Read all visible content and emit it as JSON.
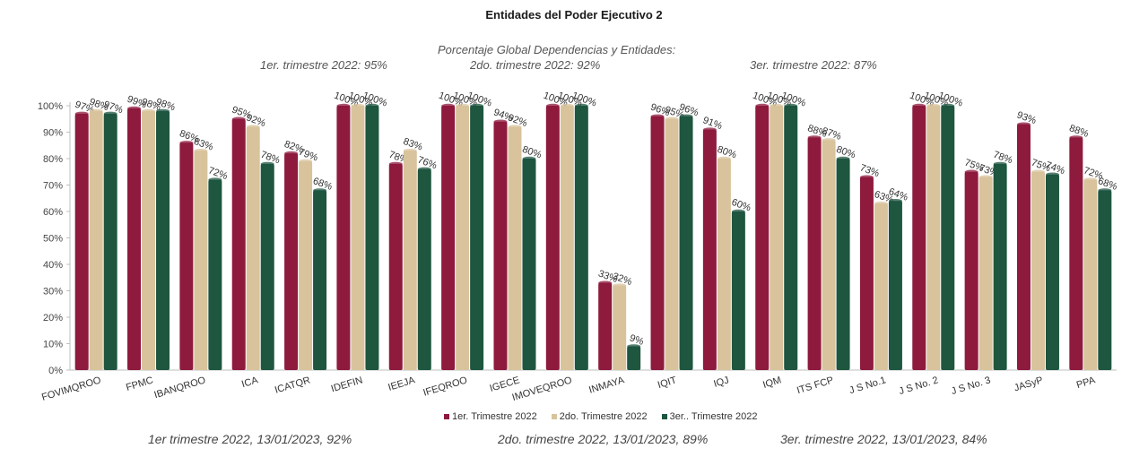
{
  "title": "Entidades del Poder Ejecutivo 2",
  "notes": {
    "heading": "Porcentaje Global  Dependencias y Entidades:",
    "q1": "1er. trimestre 2022: 95%",
    "q2": "2do. trimestre 2022: 92%",
    "q3": "3er. trimestre 2022: 87%"
  },
  "footer": {
    "q1": "1er trimestre  2022,  13/01/2023, 92%",
    "q2": "2do. trimestre 2022, 13/01/2023, 89%",
    "q3": "3er. trimestre 2022, 13/01/2023, 84%"
  },
  "chart_data": {
    "type": "bar",
    "title": "Entidades del Poder Ejecutivo 2",
    "categories": [
      "FOVIMQROO",
      "FPMC",
      "IBANQROO",
      "ICA",
      "ICATQR",
      "IDEFIN",
      "IEEJA",
      "IFEQROO",
      "IGECE",
      "IMOVEQROO",
      "INMAYA",
      "IQIT",
      "IQJ",
      "IQM",
      "ITS FCP",
      "J S No.1",
      "J S No. 2",
      "J S No. 3",
      "JASyP",
      "PPA"
    ],
    "series": [
      {
        "name": "1er. Trimestre 2022",
        "color": "#8e1a3d",
        "values": [
          97,
          99,
          86,
          95,
          82,
          100,
          78,
          100,
          94,
          100,
          33,
          96,
          91,
          100,
          88,
          73,
          100,
          75,
          93,
          88
        ]
      },
      {
        "name": "2do. Trimestre 2022",
        "color": "#d8c39c",
        "values": [
          98,
          98,
          83,
          92,
          79,
          100,
          83,
          100,
          92,
          100,
          32,
          95,
          80,
          100,
          87,
          63,
          100,
          73,
          75,
          72
        ]
      },
      {
        "name": "3er.. Trimestre 2022",
        "color": "#1e5640",
        "values": [
          97,
          98,
          72,
          78,
          68,
          100,
          76,
          100,
          80,
          100,
          9,
          96,
          60,
          100,
          80,
          64,
          100,
          78,
          74,
          68
        ]
      }
    ],
    "ylim": [
      0,
      100
    ],
    "yticks": [
      "0%",
      "10%",
      "20%",
      "30%",
      "40%",
      "50%",
      "60%",
      "70%",
      "80%",
      "90%",
      "100%"
    ],
    "grid": false,
    "legend_position": "bottom"
  }
}
